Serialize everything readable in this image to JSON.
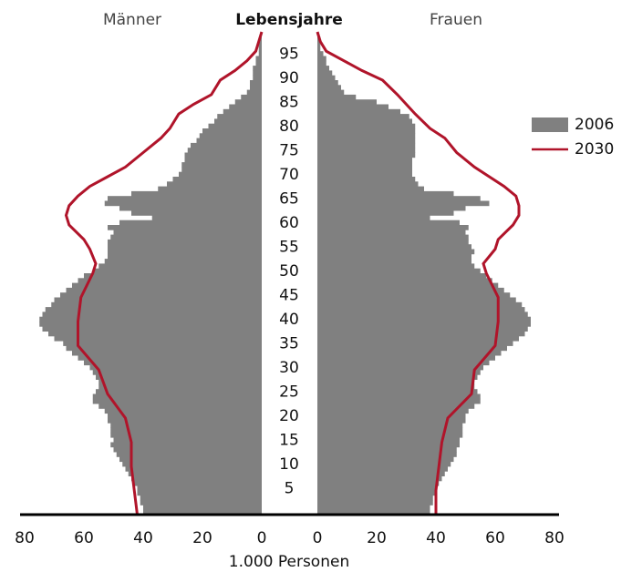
{
  "chart_data": {
    "type": "population_pyramid",
    "title": "Lebensjahre",
    "left_label": "Männer",
    "right_label": "Frauen",
    "xlabel": "1.000 Personen",
    "xlim": [
      0,
      80
    ],
    "xticks": [
      0,
      20,
      40,
      60,
      80
    ],
    "ylim": [
      0,
      100
    ],
    "yticks": [
      5,
      10,
      15,
      20,
      25,
      30,
      35,
      40,
      45,
      50,
      55,
      60,
      65,
      70,
      75,
      80,
      85,
      90,
      95
    ],
    "series": [
      {
        "name": "2006",
        "color": "#808080",
        "kind": "bar",
        "ages": [
          0,
          1,
          2,
          3,
          4,
          5,
          6,
          7,
          8,
          9,
          10,
          11,
          12,
          13,
          14,
          15,
          16,
          17,
          18,
          19,
          20,
          21,
          22,
          23,
          24,
          25,
          26,
          27,
          28,
          29,
          30,
          31,
          32,
          33,
          34,
          35,
          36,
          37,
          38,
          39,
          40,
          41,
          42,
          43,
          44,
          45,
          46,
          47,
          48,
          49,
          50,
          51,
          52,
          53,
          54,
          55,
          56,
          57,
          58,
          59,
          60,
          61,
          62,
          63,
          64,
          65,
          66,
          67,
          68,
          69,
          70,
          71,
          72,
          73,
          74,
          75,
          76,
          77,
          78,
          79,
          80,
          81,
          82,
          83,
          84,
          85,
          86,
          87,
          88,
          89,
          90,
          91,
          92,
          93,
          94,
          95,
          96,
          97,
          98,
          99
        ],
        "male": [
          40,
          40,
          41,
          41,
          42,
          42,
          43,
          44,
          45,
          46,
          47,
          48,
          49,
          50,
          51,
          50,
          51,
          51,
          51,
          52,
          52,
          53,
          55,
          57,
          57,
          56,
          55,
          55,
          56,
          57,
          58,
          60,
          62,
          64,
          66,
          67,
          70,
          72,
          74,
          75,
          75,
          74,
          73,
          71,
          70,
          68,
          66,
          64,
          62,
          60,
          57,
          55,
          53,
          52,
          52,
          52,
          52,
          51,
          50,
          52,
          48,
          37,
          44,
          48,
          53,
          52,
          44,
          35,
          32,
          30,
          28,
          27,
          27,
          26,
          26,
          25,
          24,
          22,
          21,
          20,
          18,
          16,
          15,
          13,
          11,
          9,
          7,
          5,
          4,
          4,
          3,
          3,
          3,
          2,
          2,
          1,
          1,
          1,
          0.5,
          0.5
        ],
        "female": [
          38,
          38,
          39,
          39,
          40,
          40,
          41,
          42,
          43,
          44,
          45,
          46,
          47,
          47,
          48,
          48,
          49,
          49,
          49,
          50,
          50,
          51,
          53,
          55,
          55,
          54,
          53,
          53,
          54,
          55,
          56,
          58,
          60,
          62,
          64,
          66,
          68,
          70,
          71,
          72,
          72,
          71,
          70,
          69,
          67,
          65,
          63,
          61,
          59,
          57,
          55,
          53,
          52,
          52,
          53,
          52,
          51,
          51,
          50,
          51,
          48,
          38,
          46,
          50,
          58,
          55,
          46,
          36,
          34,
          33,
          32,
          32,
          32,
          32,
          33,
          33,
          33,
          33,
          33,
          33,
          33,
          32,
          31,
          28,
          24,
          20,
          13,
          9,
          8,
          7,
          6,
          5,
          4,
          3,
          3,
          2,
          1,
          1,
          1,
          0.5
        ]
      },
      {
        "name": "2030",
        "color": "#b0142a",
        "kind": "line",
        "ages": [
          0,
          5,
          10,
          15,
          20,
          25,
          30,
          35,
          40,
          45,
          50,
          52,
          55,
          57,
          60,
          62,
          64,
          66,
          68,
          70,
          72,
          75,
          78,
          80,
          83,
          85,
          87,
          90,
          92,
          94,
          96,
          98,
          100
        ],
        "male": [
          42,
          43,
          44,
          44,
          46,
          52,
          55,
          62,
          62,
          61,
          57,
          56,
          58,
          60,
          65,
          66,
          65,
          62,
          58,
          52,
          46,
          40,
          34,
          31,
          28,
          23,
          17,
          14,
          9,
          5,
          2,
          1,
          0
        ],
        "female": [
          40,
          40,
          41,
          42,
          44,
          52,
          53,
          60,
          61,
          61,
          57,
          56,
          60,
          61,
          66,
          68,
          68,
          67,
          63,
          58,
          53,
          47,
          43,
          38,
          33,
          30,
          27,
          22,
          15,
          9,
          3,
          1,
          0
        ]
      }
    ]
  }
}
